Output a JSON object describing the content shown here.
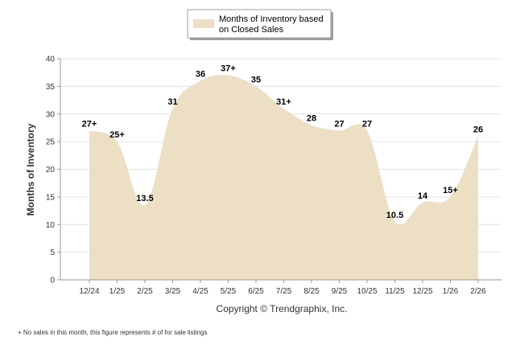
{
  "legend": {
    "line1": "Months of Inventory based",
    "line2": "on Closed Sales"
  },
  "copyright": "Copyright © Trendgraphix, Inc.",
  "footnote": "+  No sales in this month, this figure represents # of for sale listings",
  "colors": {
    "area": "#eddfc4",
    "grid": "#e4e4e4",
    "axis": "#9a9a9a"
  },
  "chart_data": {
    "type": "area",
    "categories": [
      "12/24",
      "1/25",
      "2/25",
      "3/25",
      "4/25",
      "5/25",
      "6/25",
      "7/25",
      "8/25",
      "9/25",
      "10/25",
      "11/25",
      "12/25",
      "1/26",
      "2/26"
    ],
    "series": [
      {
        "values": [
          27,
          25,
          13.5,
          31,
          36,
          37,
          35,
          31,
          28,
          27,
          27,
          10.5,
          14,
          15,
          26
        ],
        "labels": [
          "27+",
          "25+",
          "13.5",
          "31",
          "36",
          "37+",
          "35",
          "31+",
          "28",
          "27",
          "27",
          "10.5",
          "14",
          "15+",
          "26"
        ]
      }
    ],
    "xlabel": "",
    "ylabel": "Months of Inventory",
    "ylim": [
      0,
      40
    ],
    "yticks": [
      "0",
      "5",
      "10",
      "15",
      "20",
      "25",
      "30",
      "35",
      "40"
    ],
    "grid": true,
    "legend_position": "top-center"
  }
}
